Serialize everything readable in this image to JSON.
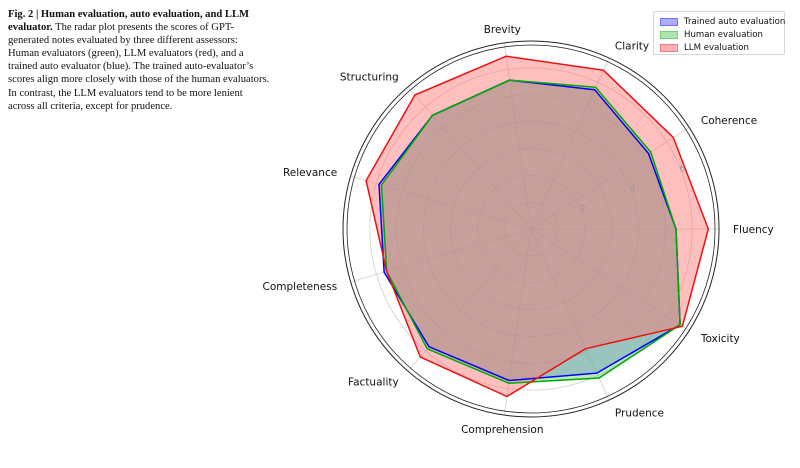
{
  "caption": {
    "bold": "Fig. 2 | Human evaluation, auto evaluation, and LLM evaluator.",
    "text": " The radar plot presents the scores of GPT-generated notes evaluated by three different assessors: Human evaluators (green), LLM evaluators (red), and a trained auto evaluator (blue). The trained auto-evaluator’s scores align more closely with those of the human evaluators. In contrast, the LLM evaluators tend to be more lenient across all criteria, except for prudence."
  },
  "chart_data": {
    "type": "radar",
    "categories": [
      "Fluency",
      "Coherence",
      "Clarity",
      "Brevity",
      "Structuring",
      "Relevance",
      "Completeness",
      "Factuality",
      "Comprehension",
      "Prudence",
      "Toxicity"
    ],
    "radial_ticks": [
      "2",
      "4",
      "6"
    ],
    "rlim": [
      0,
      7
    ],
    "grid": true,
    "legend_position": "top-right",
    "series": [
      {
        "name": "Trained auto evaluation",
        "values": [
          5.4,
          5.2,
          5.7,
          5.6,
          5.6,
          5.9,
          5.7,
          5.8,
          5.7,
          5.9,
          6.6
        ],
        "color": "#0000ff",
        "fill": "#6f6fff"
      },
      {
        "name": "Human evaluation",
        "values": [
          5.4,
          5.3,
          5.8,
          5.6,
          5.6,
          5.8,
          5.6,
          5.9,
          5.8,
          6.1,
          6.6
        ],
        "color": "#00aa00",
        "fill": "#6fcf6f"
      },
      {
        "name": "LLM evaluation",
        "values": [
          6.6,
          6.3,
          6.5,
          6.5,
          6.6,
          6.4,
          5.6,
          6.3,
          6.3,
          4.9,
          6.7
        ],
        "color": "#ee1111",
        "fill": "#ff7070"
      }
    ]
  }
}
